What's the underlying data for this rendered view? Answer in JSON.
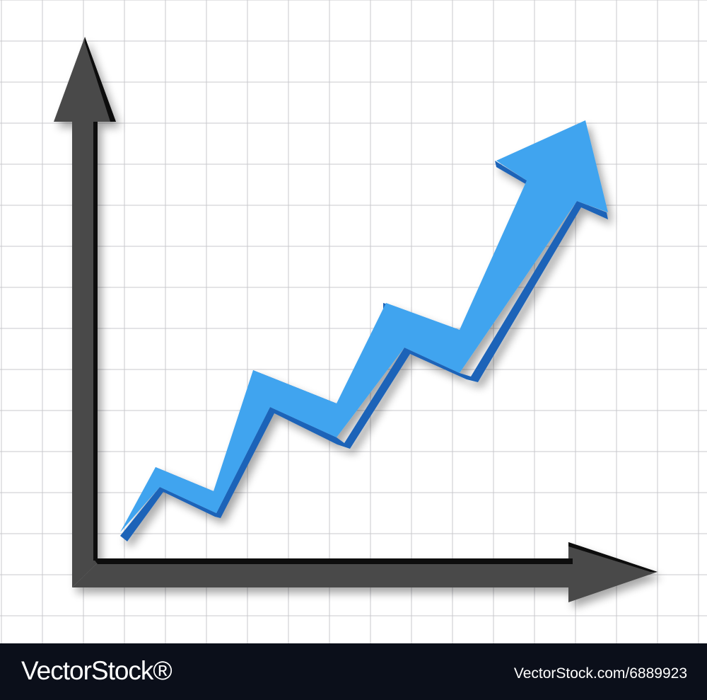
{
  "footer": {
    "logo_text": "VectorStock®",
    "image_id": "VectorStock.com/6889923"
  },
  "colors": {
    "grid_line": "#c8c8cc",
    "axis_face": "#4a4a4a",
    "axis_edge": "#111111",
    "trend_arrow": "#3fa4ef",
    "trend_arrow_side": "#1d64b8",
    "footer_bg": "#0b0f1a"
  },
  "icons": [
    "y-axis-arrow",
    "x-axis-arrow",
    "rising-trend-arrow"
  ]
}
